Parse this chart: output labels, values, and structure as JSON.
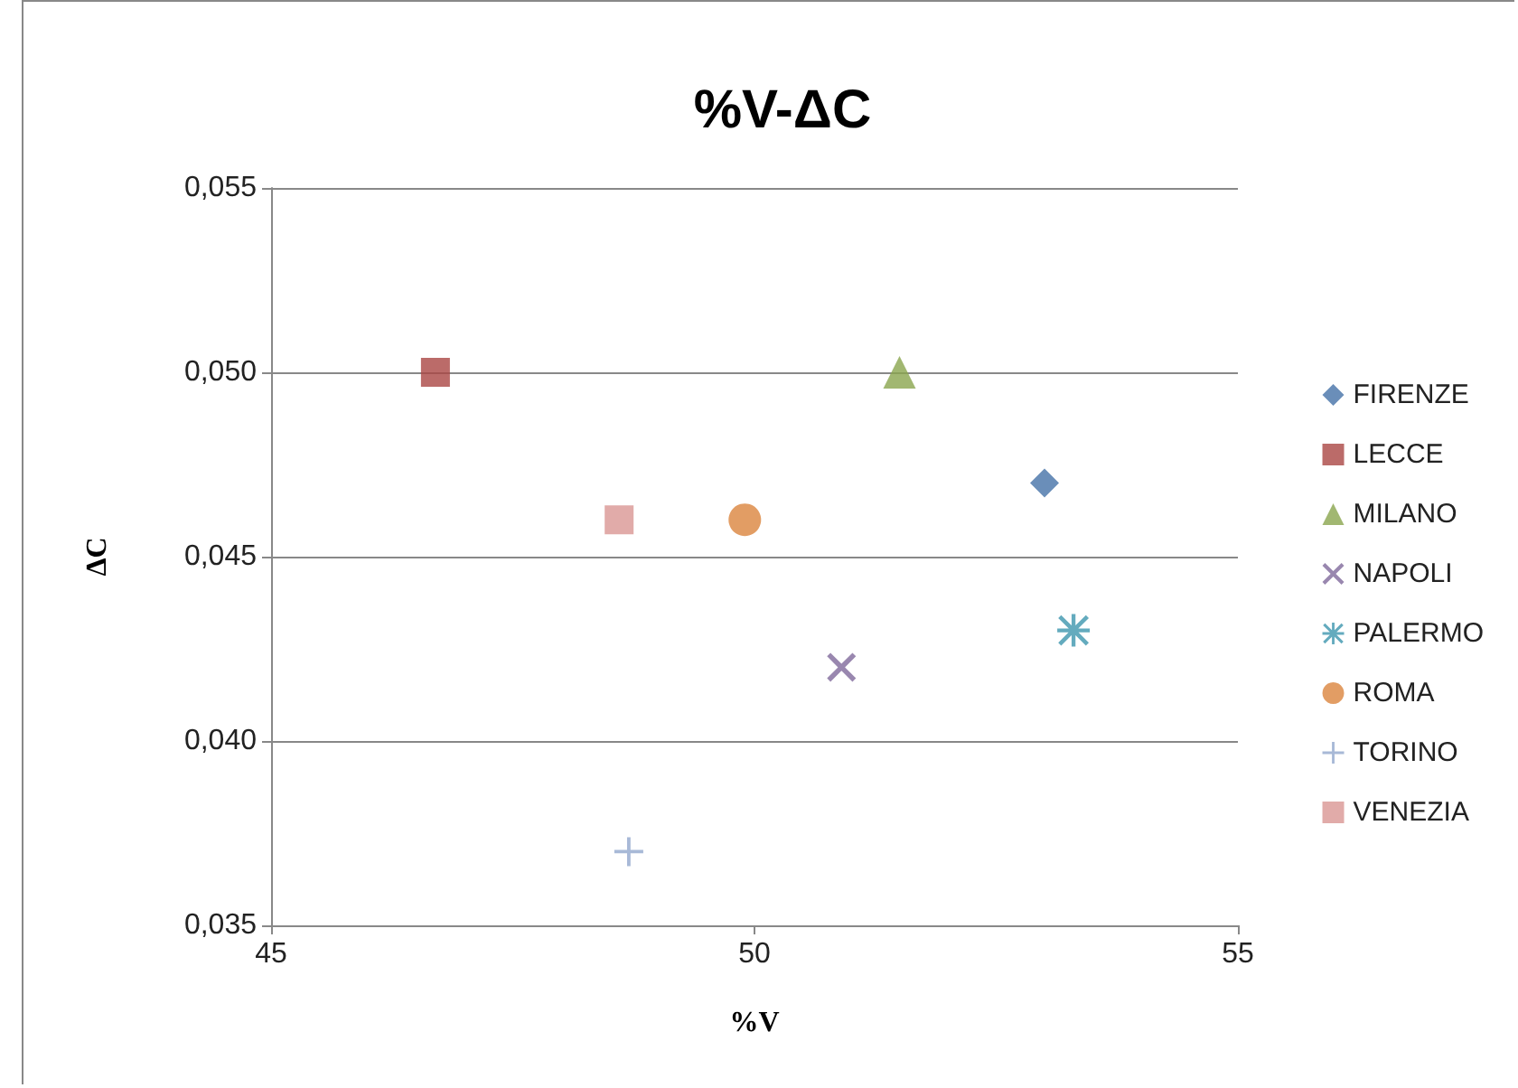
{
  "chart_data": {
    "type": "scatter",
    "title": "%V-ΔC",
    "xlabel": "%V",
    "ylabel": "ΔC",
    "xlim": [
      45,
      55
    ],
    "xticks": [
      45,
      50,
      55
    ],
    "ylim": [
      0.035,
      0.055
    ],
    "yticks": [
      {
        "value": 0.035,
        "label": "0,035"
      },
      {
        "value": 0.04,
        "label": "0,040"
      },
      {
        "value": 0.045,
        "label": "0,045"
      },
      {
        "value": 0.05,
        "label": "0,050"
      },
      {
        "value": 0.055,
        "label": "0,055"
      }
    ],
    "grid": "y",
    "legend": "right",
    "series": [
      {
        "name": "FIRENZE",
        "color": "#4572a7",
        "marker": "diamond",
        "x": [
          53.0
        ],
        "values": [
          0.047
        ]
      },
      {
        "name": "LECCE",
        "color": "#aa4643",
        "marker": "square",
        "x": [
          46.7
        ],
        "values": [
          0.05
        ]
      },
      {
        "name": "MILANO",
        "color": "#89a54e",
        "marker": "triangle",
        "x": [
          51.5
        ],
        "values": [
          0.05
        ]
      },
      {
        "name": "NAPOLI",
        "color": "#80699b",
        "marker": "cross",
        "x": [
          50.9
        ],
        "values": [
          0.042
        ]
      },
      {
        "name": "PALERMO",
        "color": "#3d96ae",
        "marker": "star",
        "x": [
          53.3
        ],
        "values": [
          0.043
        ]
      },
      {
        "name": "ROMA",
        "color": "#db843d",
        "marker": "circle",
        "x": [
          49.9
        ],
        "values": [
          0.046
        ]
      },
      {
        "name": "TORINO",
        "color": "#92a8cd",
        "marker": "plus",
        "x": [
          48.7
        ],
        "values": [
          0.037
        ]
      },
      {
        "name": "VENEZIA",
        "color": "#d99694",
        "marker": "square",
        "x": [
          48.6
        ],
        "values": [
          0.046
        ]
      }
    ]
  }
}
